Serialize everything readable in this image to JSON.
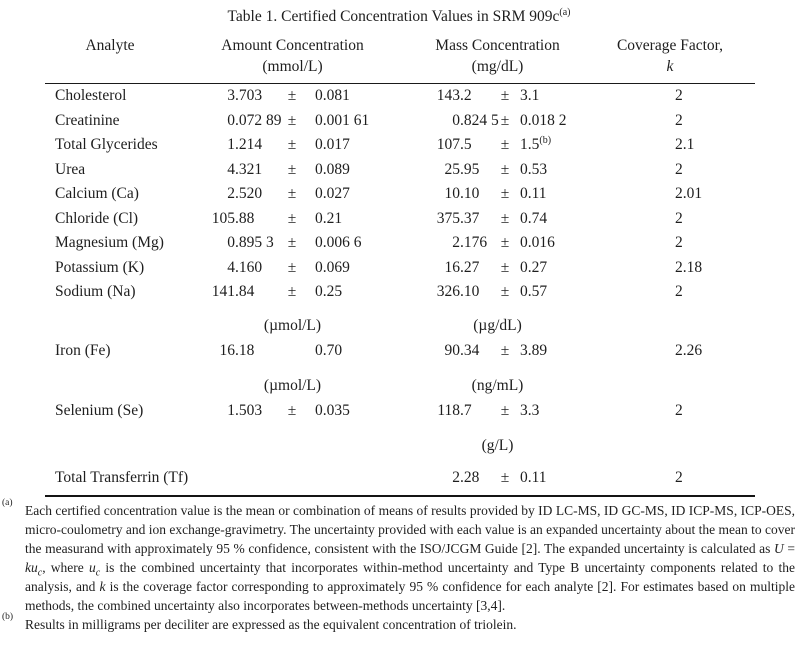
{
  "page": {
    "ink_color": "#1e1e1e",
    "background_color": "#ffffff"
  },
  "title": {
    "prefix": "Table 1.  Certified Concentration Values in SRM 909c",
    "superscript": "(a)"
  },
  "table": {
    "header": {
      "analyte": "Analyte",
      "amount_line1": "Amount Concentration",
      "amount_line2": "(mmol/L)",
      "mass_line1": "Mass Concentration",
      "mass_line2": "(mg/dL)",
      "coverage_line1": "Coverage Factor,",
      "coverage_line2": "k"
    },
    "rows": [
      {
        "type": "data",
        "analyte": "Cholesterol",
        "amount": {
          "int": "3",
          "frac": ".703",
          "pm": "±",
          "unc": "0.081"
        },
        "mass": {
          "int": "143",
          "frac": ".2",
          "pm": "±",
          "unc": "3.1"
        },
        "k": "2"
      },
      {
        "type": "data",
        "analyte": "Creatinine",
        "amount": {
          "int": "0",
          "frac": ".072 89",
          "pm": "±",
          "unc": "0.001 61"
        },
        "mass": {
          "int": "0",
          "frac": ".824 5",
          "pm": "±",
          "unc": "0.018 2"
        },
        "k": "2"
      },
      {
        "type": "data",
        "analyte": "Total Glycerides",
        "amount": {
          "int": "1",
          "frac": ".214",
          "pm": "±",
          "unc": "0.017"
        },
        "mass": {
          "int": "107",
          "frac": ".5",
          "pm": "±",
          "unc": "1.5",
          "unc_sup": "(b)"
        },
        "k": "2.1"
      },
      {
        "type": "data",
        "analyte": "Urea",
        "amount": {
          "int": "4",
          "frac": ".321",
          "pm": "±",
          "unc": "0.089"
        },
        "mass": {
          "int": "25",
          "frac": ".95",
          "pm": "±",
          "unc": "0.53"
        },
        "k": "2"
      },
      {
        "type": "data",
        "analyte": "Calcium (Ca)",
        "amount": {
          "int": "2",
          "frac": ".520",
          "pm": "±",
          "unc": "0.027"
        },
        "mass": {
          "int": "10",
          "frac": ".10",
          "pm": "±",
          "unc": "0.11"
        },
        "k": "2.01"
      },
      {
        "type": "data",
        "analyte": "Chloride (Cl)",
        "amount": {
          "int": "105",
          "frac": ".88",
          "pm": "±",
          "unc": "0.21"
        },
        "mass": {
          "int": "375",
          "frac": ".37",
          "pm": "±",
          "unc": "0.74"
        },
        "k": "2"
      },
      {
        "type": "data",
        "analyte": "Magnesium (Mg)",
        "amount": {
          "int": "0",
          "frac": ".895 3",
          "pm": "±",
          "unc": "0.006 6"
        },
        "mass": {
          "int": "2",
          "frac": ".176",
          "pm": "±",
          "unc": "0.016"
        },
        "k": "2"
      },
      {
        "type": "data",
        "analyte": "Potassium (K)",
        "amount": {
          "int": "4",
          "frac": ".160",
          "pm": "±",
          "unc": "0.069"
        },
        "mass": {
          "int": "16",
          "frac": ".27",
          "pm": "±",
          "unc": "0.27"
        },
        "k": "2.18"
      },
      {
        "type": "data",
        "analyte": "Sodium (Na)",
        "amount": {
          "int": "141",
          "frac": ".84",
          "pm": "±",
          "unc": "0.25"
        },
        "mass": {
          "int": "326",
          "frac": ".10",
          "pm": "±",
          "unc": "0.57"
        },
        "k": "2"
      },
      {
        "type": "units",
        "amount_unit": "(µmol/L)",
        "mass_unit": "(µg/dL)"
      },
      {
        "type": "data",
        "spacing": "after-unit",
        "analyte": "Iron (Fe)",
        "amount": {
          "int": "16",
          "frac": ".18",
          "pm": "",
          "unc": "0.70"
        },
        "mass": {
          "int": "90",
          "frac": ".34",
          "pm": "±",
          "unc": "3.89"
        },
        "k": "2.26"
      },
      {
        "type": "units",
        "amount_unit": "(µmol/L)",
        "mass_unit": "(ng/mL)"
      },
      {
        "type": "data",
        "spacing": "after-unit",
        "analyte": "Selenium (Se)",
        "amount": {
          "int": "1",
          "frac": ".503",
          "pm": "±",
          "unc": "0.035"
        },
        "mass": {
          "int": "118",
          "frac": ".7",
          "pm": "±",
          "unc": "3.3"
        },
        "k": "2"
      },
      {
        "type": "units",
        "amount_unit": "",
        "mass_unit": "(g/L)"
      },
      {
        "type": "data",
        "spacing": "extra-space",
        "analyte": "Total Transferrin (Tf)",
        "amount": null,
        "mass": {
          "int": "2",
          "frac": ".28",
          "pm": "±",
          "unc": "0.11"
        },
        "k": "2"
      }
    ]
  },
  "footnotes": [
    {
      "marker": "(a)",
      "segments": [
        {
          "style": "normal",
          "text": "Each certified concentration value is the mean or combination of means of results provided by ID LC-MS, ID GC-MS, ID ICP-MS, ICP-OES, micro-coulometry and ion exchange-gravimetry.  The uncertainty provided with each value is an expanded uncertainty about the mean to cover the measurand with approximately 95 % confidence, consistent with the ISO/JCGM Guide [2].  The expanded uncertainty is calculated as "
        },
        {
          "style": "italic",
          "text": "U"
        },
        {
          "style": "normal",
          "text": " = "
        },
        {
          "style": "italic",
          "text": "ku"
        },
        {
          "style": "italic-sub",
          "text": "c"
        },
        {
          "style": "normal",
          "text": ", where "
        },
        {
          "style": "italic",
          "text": "u"
        },
        {
          "style": "italic-sub",
          "text": "c"
        },
        {
          "style": "normal",
          "text": " is the combined uncertainty that incorporates within-method uncertainty and Type B uncertainty components related to the analysis, and "
        },
        {
          "style": "italic",
          "text": "k"
        },
        {
          "style": "normal",
          "text": " is the coverage factor corresponding to approximately 95 % confidence for each analyte [2].  For estimates based on multiple methods, the combined uncertainty also incorporates between-methods uncertainty [3,4]."
        }
      ]
    },
    {
      "marker": "(b)",
      "segments": [
        {
          "style": "normal",
          "text": "Results in milligrams per deciliter are expressed as the equivalent concentration of triolein."
        }
      ]
    }
  ]
}
